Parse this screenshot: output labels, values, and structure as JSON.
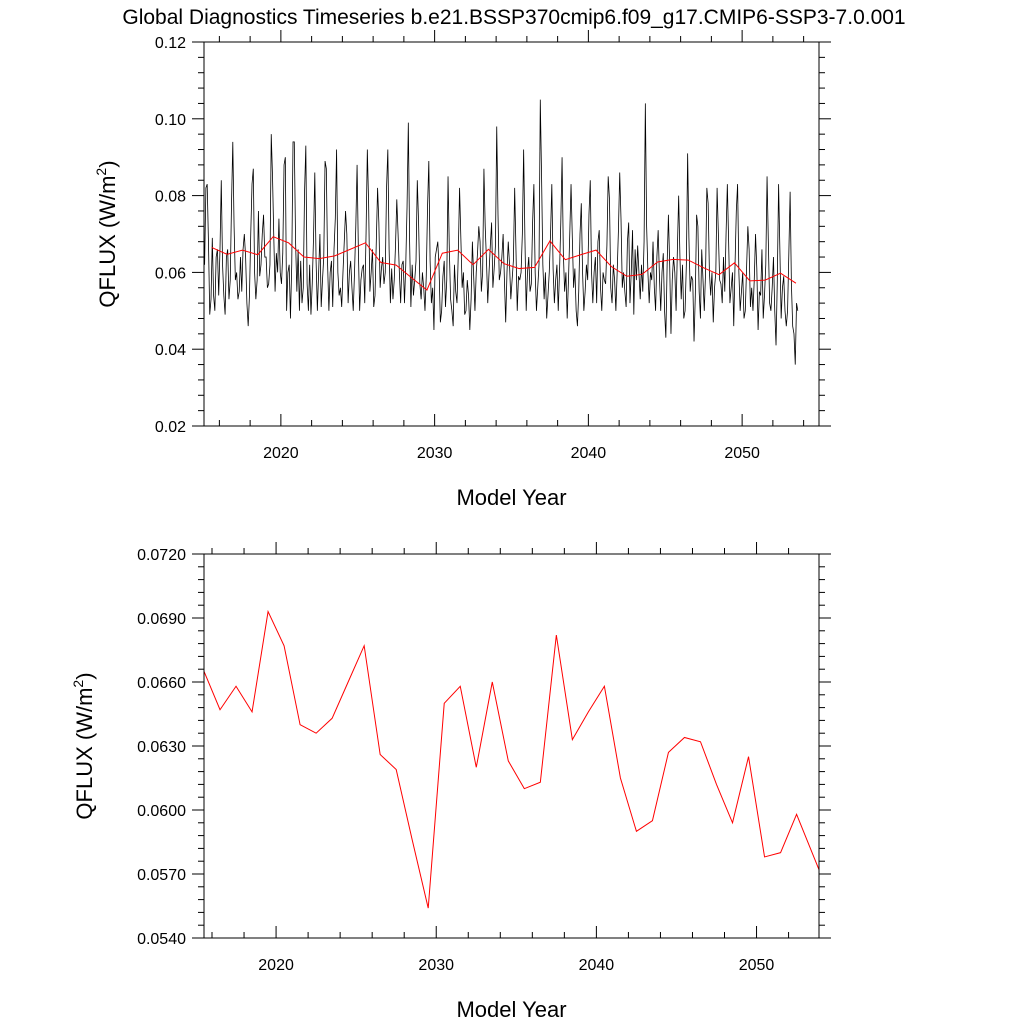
{
  "page_title": "Global Diagnostics Timeseries b.e21.BSSP370cmip6.f09_g17.CMIP6-SSP3-7.0.001",
  "colors": {
    "monthly": "#000000",
    "annual": "#ff0000"
  },
  "chart_data": [
    {
      "type": "line",
      "xlabel": "Model Year",
      "ylabel_main": "QFLUX (W/m",
      "ylabel_sup": "2",
      "ylabel_end": ")",
      "xlim": [
        2015,
        2055
      ],
      "ylim": [
        0.02,
        0.12
      ],
      "xticks": [
        2020,
        2030,
        2040,
        2050
      ],
      "xtick_labels": [
        "2020",
        "2030",
        "2040",
        "2050"
      ],
      "yticks": [
        0.02,
        0.04,
        0.06,
        0.08,
        0.1,
        0.12
      ],
      "ytick_labels": [
        "0.02",
        "0.04",
        "0.06",
        "0.08",
        "0.10",
        "0.12"
      ],
      "series": [
        {
          "role": "monthly",
          "color": "#000000",
          "x_start": 2015.04,
          "x_step": 0.08333,
          "values": [
            0.062,
            0.082,
            0.083,
            0.068,
            0.049,
            0.053,
            0.069,
            0.054,
            0.05,
            0.064,
            0.066,
            0.054,
            0.066,
            0.084,
            0.062,
            0.054,
            0.049,
            0.064,
            0.066,
            0.053,
            0.058,
            0.078,
            0.094,
            0.072,
            0.058,
            0.06,
            0.053,
            0.055,
            0.064,
            0.055,
            0.066,
            0.07,
            0.064,
            0.052,
            0.046,
            0.054,
            0.07,
            0.083,
            0.087,
            0.06,
            0.053,
            0.058,
            0.076,
            0.059,
            0.062,
            0.07,
            0.075,
            0.064,
            0.064,
            0.056,
            0.057,
            0.062,
            0.096,
            0.085,
            0.069,
            0.055,
            0.065,
            0.06,
            0.074,
            0.06,
            0.057,
            0.065,
            0.088,
            0.09,
            0.05,
            0.06,
            0.062,
            0.048,
            0.062,
            0.094,
            0.094,
            0.068,
            0.055,
            0.066,
            0.05,
            0.063,
            0.052,
            0.056,
            0.081,
            0.093,
            0.057,
            0.05,
            0.062,
            0.049,
            0.057,
            0.069,
            0.086,
            0.063,
            0.05,
            0.06,
            0.07,
            0.051,
            0.058,
            0.064,
            0.089,
            0.087,
            0.062,
            0.05,
            0.06,
            0.063,
            0.051,
            0.066,
            0.074,
            0.092,
            0.06,
            0.054,
            0.056,
            0.051,
            0.06,
            0.068,
            0.076,
            0.07,
            0.052,
            0.06,
            0.063,
            0.056,
            0.05,
            0.06,
            0.072,
            0.088,
            0.066,
            0.05,
            0.058,
            0.061,
            0.062,
            0.052,
            0.07,
            0.092,
            0.078,
            0.055,
            0.06,
            0.066,
            0.051,
            0.054,
            0.068,
            0.082,
            0.073,
            0.056,
            0.061,
            0.064,
            0.057,
            0.06,
            0.082,
            0.092,
            0.066,
            0.052,
            0.061,
            0.053,
            0.058,
            0.067,
            0.079,
            0.07,
            0.06,
            0.052,
            0.062,
            0.063,
            0.052,
            0.062,
            0.077,
            0.099,
            0.068,
            0.051,
            0.062,
            0.054,
            0.058,
            0.063,
            0.084,
            0.073,
            0.057,
            0.053,
            0.06,
            0.056,
            0.05,
            0.059,
            0.077,
            0.089,
            0.063,
            0.052,
            0.056,
            0.045,
            0.064,
            0.066,
            0.068,
            0.061,
            0.047,
            0.05,
            0.059,
            0.063,
            0.051,
            0.058,
            0.085,
            0.066,
            0.053,
            0.05,
            0.046,
            0.062,
            0.055,
            0.052,
            0.065,
            0.082,
            0.069,
            0.056,
            0.06,
            0.049,
            0.05,
            0.058,
            0.054,
            0.045,
            0.053,
            0.068,
            0.059,
            0.05,
            0.06,
            0.065,
            0.072,
            0.068,
            0.055,
            0.06,
            0.087,
            0.072,
            0.063,
            0.052,
            0.06,
            0.067,
            0.073,
            0.056,
            0.061,
            0.067,
            0.098,
            0.075,
            0.058,
            0.06,
            0.064,
            0.07,
            0.058,
            0.047,
            0.06,
            0.068,
            0.062,
            0.053,
            0.058,
            0.063,
            0.082,
            0.066,
            0.05,
            0.059,
            0.058,
            0.06,
            0.07,
            0.092,
            0.069,
            0.05,
            0.06,
            0.064,
            0.055,
            0.057,
            0.073,
            0.083,
            0.06,
            0.05,
            0.056,
            0.062,
            0.105,
            0.085,
            0.062,
            0.053,
            0.06,
            0.048,
            0.054,
            0.06,
            0.07,
            0.083,
            0.061,
            0.052,
            0.058,
            0.062,
            0.05,
            0.06,
            0.073,
            0.09,
            0.065,
            0.055,
            0.06,
            0.048,
            0.058,
            0.07,
            0.083,
            0.069,
            0.056,
            0.061,
            0.05,
            0.046,
            0.055,
            0.07,
            0.078,
            0.06,
            0.05,
            0.055,
            0.062,
            0.058,
            0.075,
            0.084,
            0.06,
            0.052,
            0.06,
            0.064,
            0.052,
            0.068,
            0.071,
            0.056,
            0.05,
            0.06,
            0.058,
            0.057,
            0.067,
            0.085,
            0.079,
            0.056,
            0.052,
            0.062,
            0.058,
            0.05,
            0.06,
            0.071,
            0.086,
            0.074,
            0.056,
            0.06,
            0.055,
            0.051,
            0.068,
            0.073,
            0.052,
            0.06,
            0.071,
            0.049,
            0.066,
            0.058,
            0.067,
            0.06,
            0.053,
            0.062,
            0.055,
            0.068,
            0.104,
            0.072,
            0.06,
            0.052,
            0.06,
            0.058,
            0.068,
            0.056,
            0.05,
            0.064,
            0.071,
            0.059,
            0.05,
            0.06,
            0.065,
            0.05,
            0.043,
            0.062,
            0.075,
            0.062,
            0.044,
            0.058,
            0.064,
            0.06,
            0.05,
            0.066,
            0.08,
            0.064,
            0.053,
            0.062,
            0.048,
            0.05,
            0.062,
            0.091,
            0.069,
            0.055,
            0.059,
            0.058,
            0.042,
            0.054,
            0.075,
            0.072,
            0.055,
            0.048,
            0.066,
            0.058,
            0.05,
            0.06,
            0.082,
            0.078,
            0.06,
            0.054,
            0.06,
            0.047,
            0.056,
            0.06,
            0.082,
            0.07,
            0.058,
            0.057,
            0.052,
            0.064,
            0.055,
            0.07,
            0.083,
            0.068,
            0.052,
            0.056,
            0.06,
            0.046,
            0.062,
            0.076,
            0.083,
            0.06,
            0.05,
            0.055,
            0.06,
            0.048,
            0.05,
            0.061,
            0.072,
            0.066,
            0.051,
            0.056,
            0.05,
            0.058,
            0.07,
            0.061,
            0.045,
            0.055,
            0.054,
            0.066,
            0.048,
            0.054,
            0.062,
            0.085,
            0.068,
            0.052,
            0.05,
            0.056,
            0.064,
            0.05,
            0.041,
            0.058,
            0.083,
            0.066,
            0.048,
            0.056,
            0.059,
            0.05,
            0.046,
            0.05,
            0.065,
            0.081,
            0.057,
            0.046,
            0.044,
            0.036,
            0.052,
            0.05
          ]
        },
        {
          "role": "annual",
          "color": "#ff0000",
          "x": [
            2015.5,
            2016.5,
            2017.5,
            2018.5,
            2019.5,
            2020.5,
            2021.5,
            2022.5,
            2023.5,
            2024.5,
            2025.5,
            2026.5,
            2027.5,
            2028.5,
            2029.5,
            2030.5,
            2031.5,
            2032.5,
            2033.5,
            2034.5,
            2035.5,
            2036.5,
            2037.5,
            2038.5,
            2039.5,
            2040.5,
            2041.5,
            2042.5,
            2043.5,
            2044.5,
            2045.5,
            2046.5,
            2047.5,
            2048.5,
            2049.5,
            2050.5,
            2051.5,
            2052.5,
            2053.5
          ],
          "values": [
            0.0665,
            0.0647,
            0.0658,
            0.0646,
            0.0693,
            0.0677,
            0.064,
            0.0636,
            0.0643,
            0.066,
            0.0677,
            0.0626,
            0.0619,
            0.0586,
            0.0554,
            0.065,
            0.0658,
            0.062,
            0.066,
            0.0623,
            0.061,
            0.0613,
            0.0682,
            0.0633,
            0.0646,
            0.0658,
            0.0615,
            0.059,
            0.0595,
            0.0627,
            0.0634,
            0.0632,
            0.0612,
            0.0594,
            0.0625,
            0.0578,
            0.058,
            0.0598,
            0.0572
          ]
        }
      ]
    },
    {
      "type": "line",
      "xlabel": "Model Year",
      "ylabel_main": "QFLUX (W/m",
      "ylabel_sup": "2",
      "ylabel_end": ")",
      "xlim": [
        2015.5,
        2053.9
      ],
      "ylim": [
        0.054,
        0.072
      ],
      "xticks": [
        2020,
        2030,
        2040,
        2050
      ],
      "xtick_labels": [
        "2020",
        "2030",
        "2040",
        "2050"
      ],
      "yticks": [
        0.054,
        0.057,
        0.06,
        0.063,
        0.066,
        0.069,
        0.072
      ],
      "ytick_labels": [
        "0.0540",
        "0.0570",
        "0.0600",
        "0.0630",
        "0.0660",
        "0.0690",
        "0.0720"
      ],
      "series": [
        {
          "role": "annual",
          "color": "#ff0000",
          "x": [
            2015.5,
            2016.5,
            2017.5,
            2018.5,
            2019.5,
            2020.5,
            2021.5,
            2022.5,
            2023.5,
            2024.5,
            2025.5,
            2026.5,
            2027.5,
            2028.5,
            2029.5,
            2030.5,
            2031.5,
            2032.5,
            2033.5,
            2034.5,
            2035.5,
            2036.5,
            2037.5,
            2038.5,
            2039.5,
            2040.5,
            2041.5,
            2042.5,
            2043.5,
            2044.5,
            2045.5,
            2046.5,
            2047.5,
            2048.5,
            2049.5,
            2050.5,
            2051.5,
            2052.5,
            2053.9
          ],
          "values": [
            0.0665,
            0.0647,
            0.0658,
            0.0646,
            0.0693,
            0.0677,
            0.064,
            0.0636,
            0.0643,
            0.066,
            0.0677,
            0.0626,
            0.0619,
            0.0586,
            0.0554,
            0.065,
            0.0658,
            0.062,
            0.066,
            0.0623,
            0.061,
            0.0613,
            0.0682,
            0.0633,
            0.0646,
            0.0658,
            0.0615,
            0.059,
            0.0595,
            0.0627,
            0.0634,
            0.0632,
            0.0612,
            0.0594,
            0.0625,
            0.0578,
            0.058,
            0.0598,
            0.0572
          ]
        }
      ]
    }
  ]
}
